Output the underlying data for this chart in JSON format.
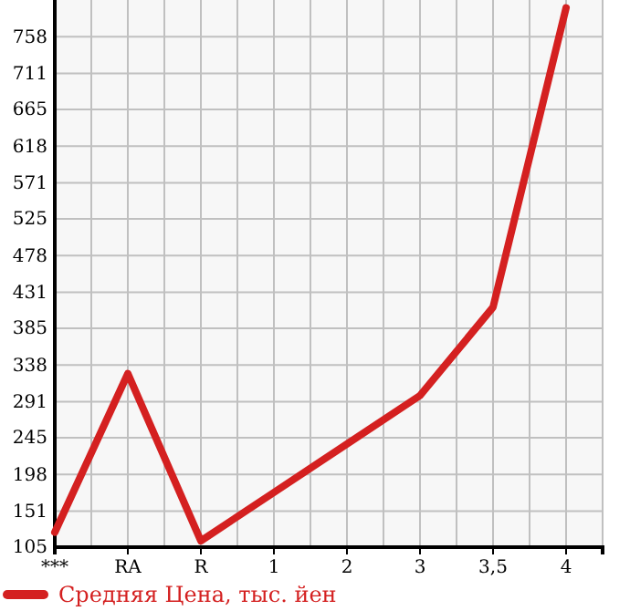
{
  "chart_data": {
    "type": "line",
    "categories": [
      "***",
      "RA",
      "R",
      "1",
      "2",
      "3",
      "3,5",
      "4"
    ],
    "series": [
      {
        "name": "Средняя Цена, тыс. йен",
        "color": "#d42020",
        "values": [
          124,
          327,
          113,
          175,
          237,
          299,
          412,
          795
        ]
      }
    ],
    "ylim": [
      105,
      805
    ],
    "yticks": [
      105,
      151,
      198,
      245,
      291,
      338,
      385,
      431,
      478,
      525,
      571,
      618,
      665,
      711,
      758
    ],
    "grid": true,
    "legend": "bottom",
    "marker": "none",
    "line_style": "solid"
  }
}
